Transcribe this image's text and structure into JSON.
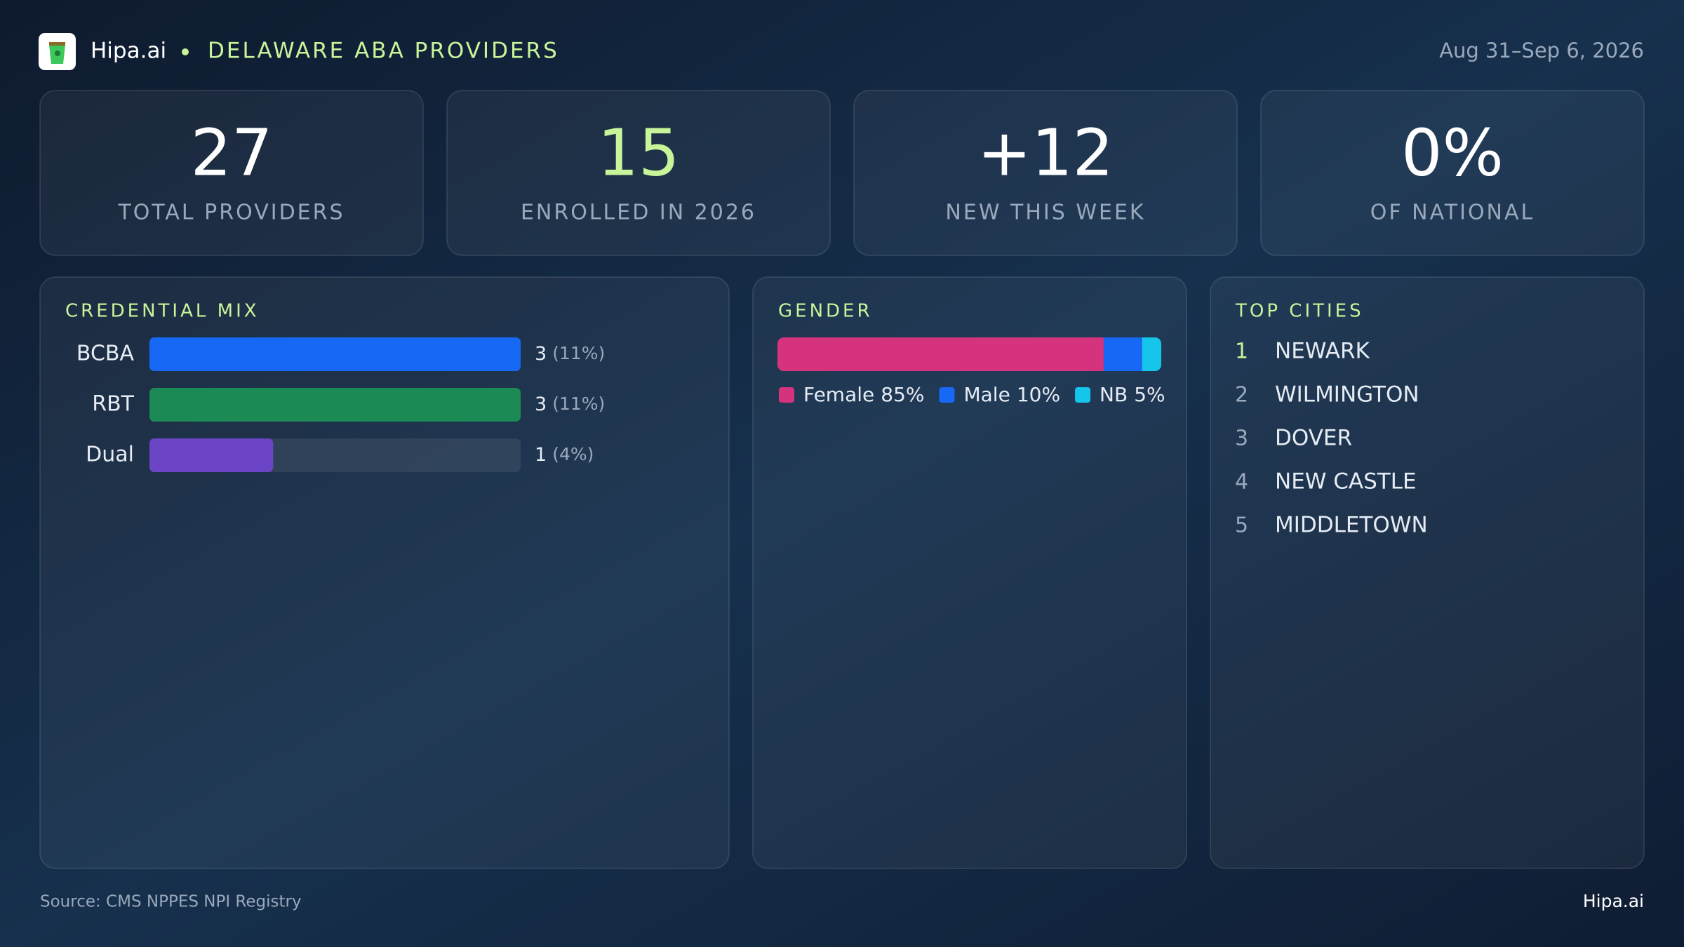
{
  "header": {
    "brand": "Hipa.ai",
    "title": "DELAWARE  ABA PROVIDERS",
    "date": "Aug 31–Sep 6, 2026"
  },
  "kpis": [
    {
      "value": "27",
      "label": "TOTAL  PROVIDERS"
    },
    {
      "value": "15",
      "label": "ENROLLED IN 2026"
    },
    {
      "value": "+12",
      "label": "NEW THIS WEEK"
    },
    {
      "value": "0%",
      "label": "OF NATIONAL"
    }
  ],
  "chart_data": [
    {
      "type": "bar",
      "orientation": "horizontal",
      "title": "CREDENTIAL  MIX",
      "categories": [
        "BCBA",
        "RBT",
        "Dual"
      ],
      "values": [
        3,
        3,
        1
      ],
      "share_labels": [
        "(11%)",
        "(11%)",
        "(4%)"
      ],
      "colors": [
        "#1769f5",
        "#1c8a55",
        "#6b45c6"
      ],
      "xlim": [
        0,
        3
      ]
    },
    {
      "type": "stacked_bar",
      "title": "GENDER",
      "xlim": [
        0,
        100
      ],
      "series": [
        {
          "name": "Female",
          "color": "#d6337f",
          "values": [
            85
          ],
          "value_labels": [
            "85%"
          ]
        },
        {
          "name": "Male",
          "color": "#1769f5",
          "values": [
            10
          ],
          "value_labels": [
            "10%"
          ]
        },
        {
          "name": "NB",
          "color": "#15c6ea",
          "values": [
            5
          ],
          "value_labels": [
            "5%"
          ]
        }
      ]
    }
  ],
  "top_cities": {
    "title": "TOP CITIES",
    "items": [
      {
        "rank": "1",
        "name": "NEWARK"
      },
      {
        "rank": "2",
        "name": "WILMINGTON"
      },
      {
        "rank": "3",
        "name": "DOVER"
      },
      {
        "rank": "4",
        "name": "NEW CASTLE"
      },
      {
        "rank": "5",
        "name": "MIDDLETOWN"
      }
    ]
  },
  "footer": {
    "source": "Source: CMS NPPES NPI Registry",
    "brand": "Hipa.ai"
  }
}
